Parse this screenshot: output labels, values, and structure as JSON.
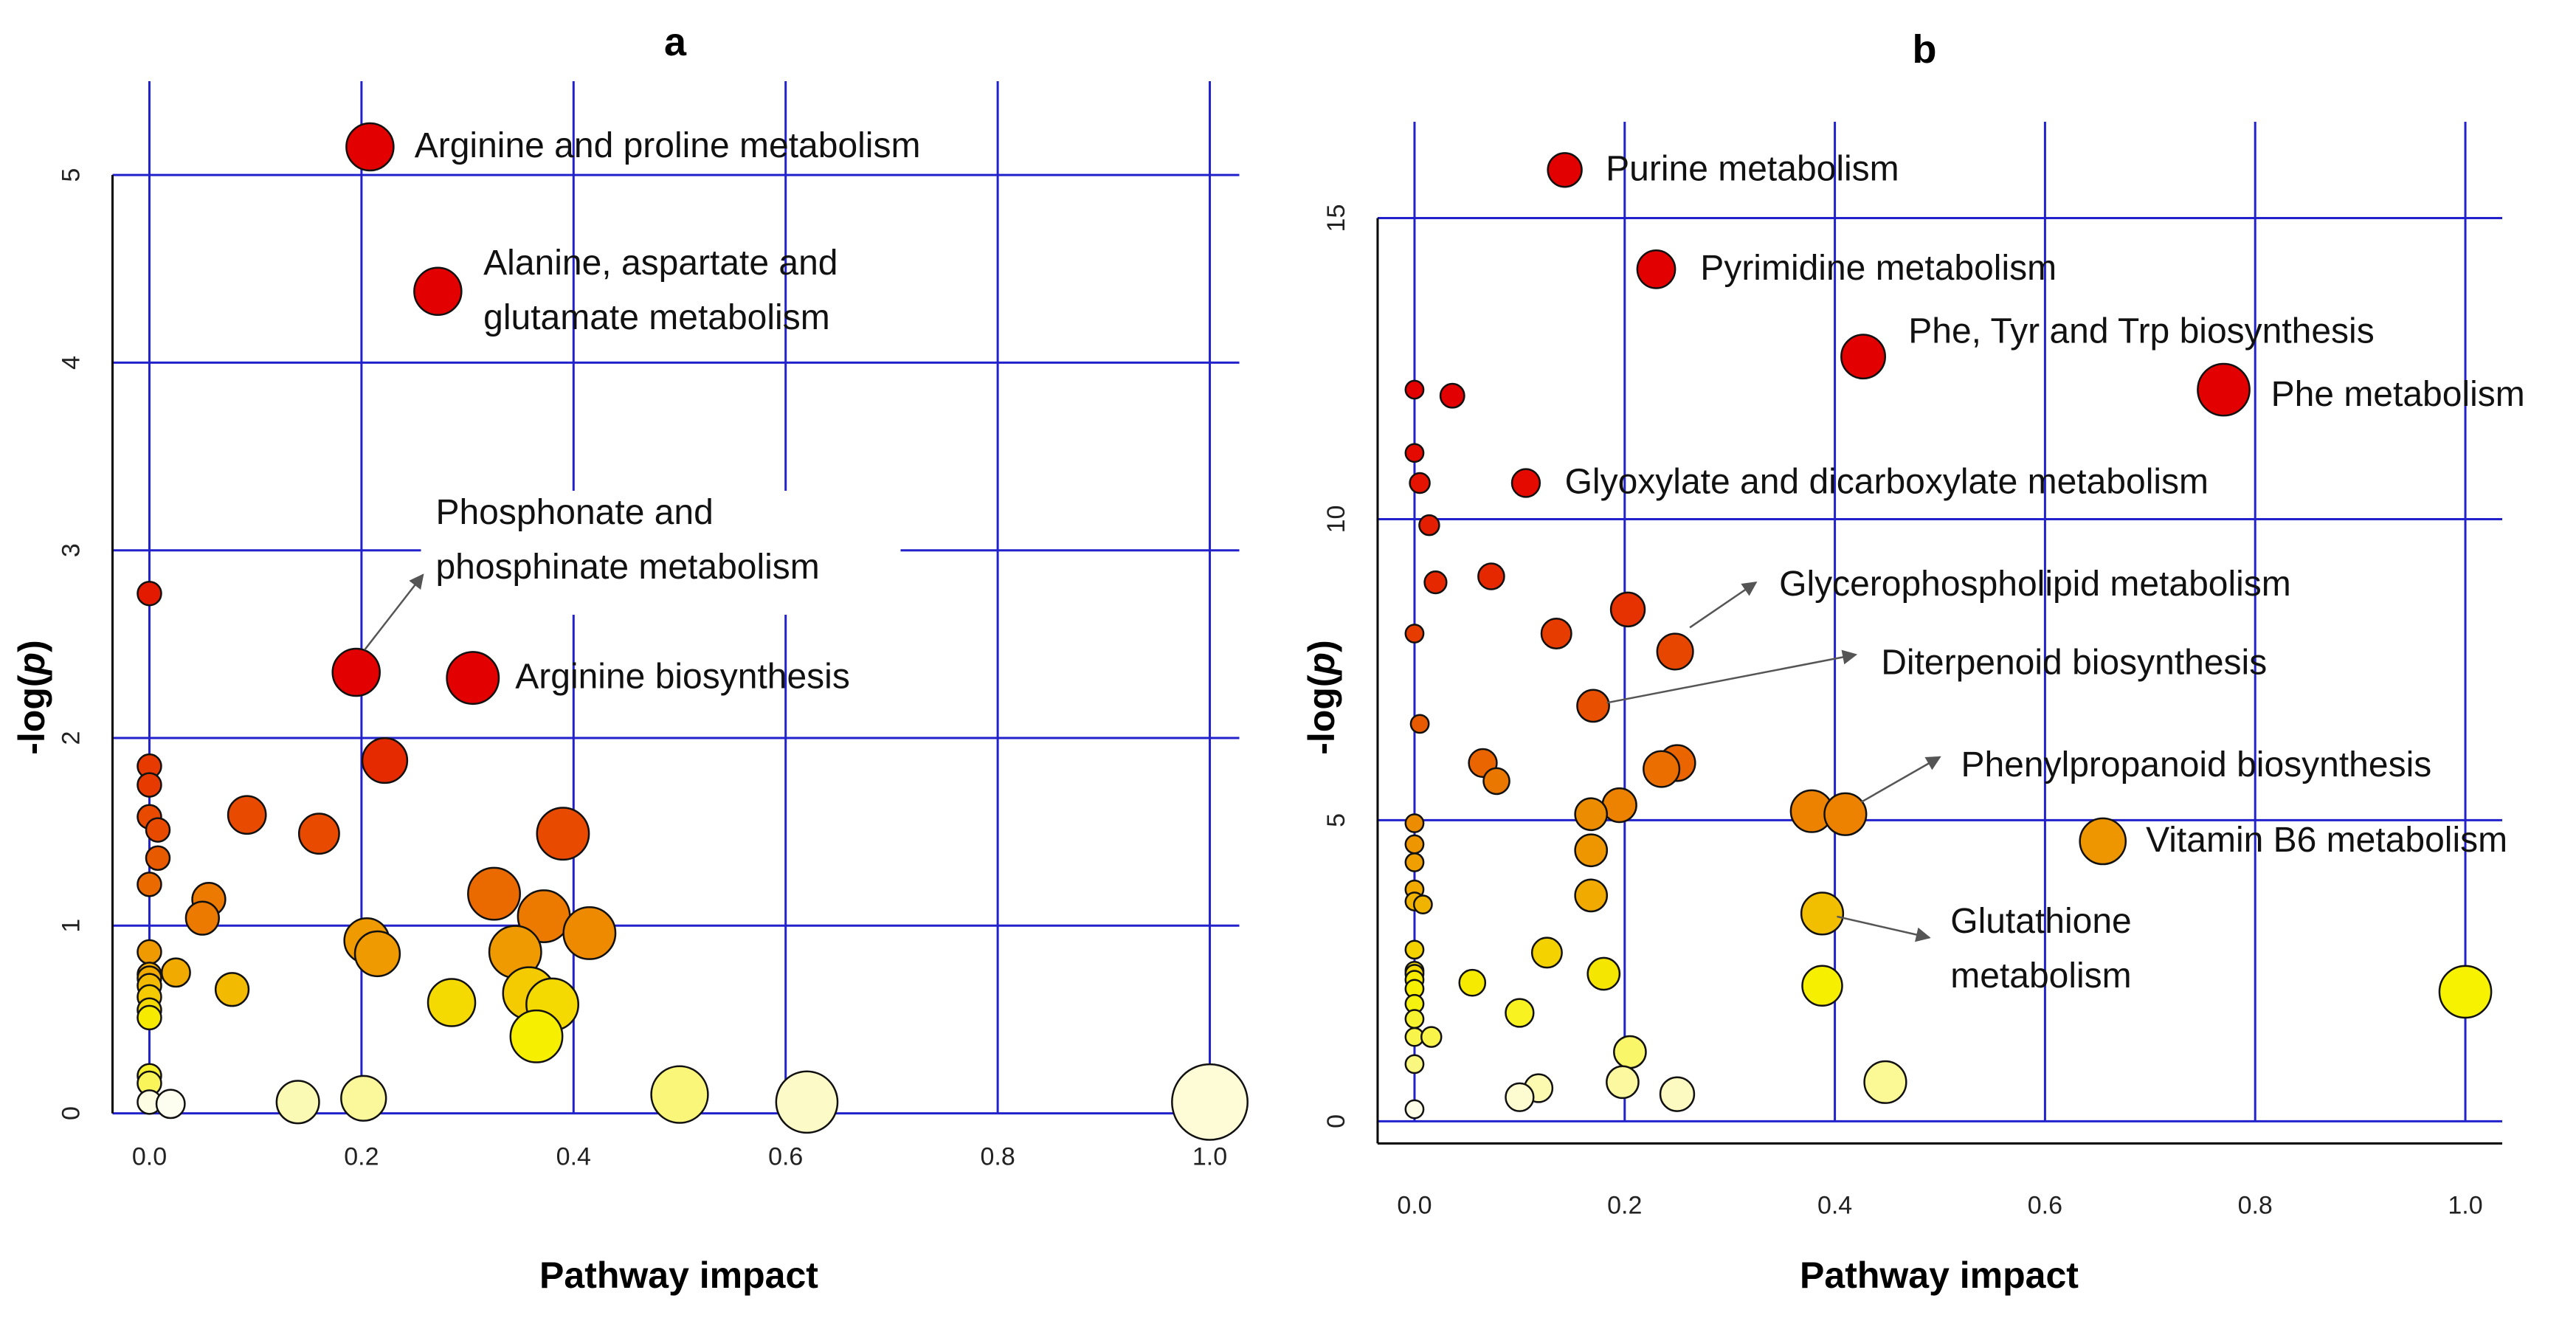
{
  "chart_data": [
    {
      "type": "scatter",
      "panel_label": "a",
      "xlabel": "Pathway impact",
      "ylabel_prefix": "-log(",
      "ylabel_italic": "p",
      "ylabel_suffix": ")",
      "xlim": [
        -0.04,
        1.04
      ],
      "ylim": [
        -0.1,
        5.5
      ],
      "xticks": [
        0.0,
        0.2,
        0.4,
        0.6,
        0.8,
        1.0
      ],
      "xtick_labels": [
        "0.0",
        "0.2",
        "0.4",
        "0.6",
        "0.8",
        "1.0"
      ],
      "yticks": [
        0,
        1,
        2,
        3,
        4,
        5
      ],
      "ytick_labels": [
        "0",
        "1",
        "2",
        "3",
        "4",
        "5"
      ],
      "grid": true,
      "color_scale": "p-value: red (high -log p) to yellow/white (low)",
      "points": [
        {
          "x": 0.208,
          "y": 5.15,
          "size": 1.0,
          "color": "#e30000"
        },
        {
          "x": 0.272,
          "y": 4.38,
          "size": 1.0,
          "color": "#e30000"
        },
        {
          "x": 0.195,
          "y": 2.35,
          "size": 1.0,
          "color": "#e30000"
        },
        {
          "x": 0.305,
          "y": 2.32,
          "size": 1.1,
          "color": "#e30000"
        },
        {
          "x": 0.0,
          "y": 2.77,
          "size": 0.5,
          "color": "#e41a00"
        },
        {
          "x": 0.222,
          "y": 1.88,
          "size": 0.95,
          "color": "#e52a00"
        },
        {
          "x": 0.0,
          "y": 1.85,
          "size": 0.5,
          "color": "#e63a00"
        },
        {
          "x": 0.0,
          "y": 1.75,
          "size": 0.5,
          "color": "#e63a00"
        },
        {
          "x": 0.092,
          "y": 1.59,
          "size": 0.8,
          "color": "#e84a00"
        },
        {
          "x": 0.0,
          "y": 1.58,
          "size": 0.5,
          "color": "#e84a00"
        },
        {
          "x": 0.008,
          "y": 1.51,
          "size": 0.5,
          "color": "#e84a00"
        },
        {
          "x": 0.16,
          "y": 1.49,
          "size": 0.85,
          "color": "#e84a00"
        },
        {
          "x": 0.39,
          "y": 1.49,
          "size": 1.1,
          "color": "#e84a00"
        },
        {
          "x": 0.008,
          "y": 1.36,
          "size": 0.5,
          "color": "#e85a00"
        },
        {
          "x": 0.0,
          "y": 1.22,
          "size": 0.5,
          "color": "#ea6a00"
        },
        {
          "x": 0.325,
          "y": 1.17,
          "size": 1.1,
          "color": "#ea6a00"
        },
        {
          "x": 0.056,
          "y": 1.14,
          "size": 0.7,
          "color": "#ec7a00"
        },
        {
          "x": 0.372,
          "y": 1.05,
          "size": 1.1,
          "color": "#ec7a00"
        },
        {
          "x": 0.05,
          "y": 1.04,
          "size": 0.7,
          "color": "#ec7a00"
        },
        {
          "x": 0.415,
          "y": 0.96,
          "size": 1.1,
          "color": "#ee8a00"
        },
        {
          "x": 0.205,
          "y": 0.92,
          "size": 0.95,
          "color": "#ee9a00"
        },
        {
          "x": 0.0,
          "y": 0.86,
          "size": 0.5,
          "color": "#ee9a00"
        },
        {
          "x": 0.345,
          "y": 0.86,
          "size": 1.1,
          "color": "#ee9a00"
        },
        {
          "x": 0.215,
          "y": 0.85,
          "size": 0.95,
          "color": "#ee9a00"
        },
        {
          "x": 0.025,
          "y": 0.75,
          "size": 0.6,
          "color": "#f0aa00"
        },
        {
          "x": 0.0,
          "y": 0.74,
          "size": 0.5,
          "color": "#f0aa00"
        },
        {
          "x": 0.0,
          "y": 0.72,
          "size": 0.5,
          "color": "#f0aa00"
        },
        {
          "x": 0.0,
          "y": 0.68,
          "size": 0.5,
          "color": "#f2ba00"
        },
        {
          "x": 0.078,
          "y": 0.66,
          "size": 0.7,
          "color": "#f2ba00"
        },
        {
          "x": 0.358,
          "y": 0.64,
          "size": 1.1,
          "color": "#f4ca00"
        },
        {
          "x": 0.0,
          "y": 0.62,
          "size": 0.5,
          "color": "#f4ca00"
        },
        {
          "x": 0.285,
          "y": 0.59,
          "size": 1.0,
          "color": "#f4da00"
        },
        {
          "x": 0.38,
          "y": 0.58,
          "size": 1.1,
          "color": "#f4da00"
        },
        {
          "x": 0.0,
          "y": 0.55,
          "size": 0.5,
          "color": "#f4da00"
        },
        {
          "x": 0.0,
          "y": 0.51,
          "size": 0.5,
          "color": "#f6ea00"
        },
        {
          "x": 0.365,
          "y": 0.41,
          "size": 1.1,
          "color": "#f6f000"
        },
        {
          "x": 0.0,
          "y": 0.2,
          "size": 0.5,
          "color": "#f7f230"
        },
        {
          "x": 0.0,
          "y": 0.16,
          "size": 0.5,
          "color": "#f8f45a"
        },
        {
          "x": 0.5,
          "y": 0.1,
          "size": 1.2,
          "color": "#f9f67a"
        },
        {
          "x": 0.202,
          "y": 0.08,
          "size": 0.95,
          "color": "#faf89a"
        },
        {
          "x": 0.14,
          "y": 0.06,
          "size": 0.9,
          "color": "#fbfab4"
        },
        {
          "x": 0.62,
          "y": 0.06,
          "size": 1.3,
          "color": "#fcfac6"
        },
        {
          "x": 1.0,
          "y": 0.06,
          "size": 1.6,
          "color": "#fdfcd6"
        },
        {
          "x": 0.0,
          "y": 0.06,
          "size": 0.5,
          "color": "#fdfde4"
        },
        {
          "x": 0.02,
          "y": 0.05,
          "size": 0.6,
          "color": "#fefef0"
        }
      ],
      "annotations": [
        {
          "lines": [
            "Arginine and proline metabolism"
          ],
          "x": 0.25,
          "y": 5.15
        },
        {
          "lines": [
            "Alanine, aspartate and",
            "glutamate metabolism"
          ],
          "x": 0.315,
          "y": 4.38
        },
        {
          "lines": [
            "Phosphonate and",
            "phosphinate metabolism"
          ],
          "x": 0.27,
          "y": 3.05,
          "white_box": true,
          "arrow_from": [
            0.203,
            2.47
          ],
          "arrow_to": [
            0.258,
            2.87
          ]
        },
        {
          "lines": [
            "Arginine biosynthesis"
          ],
          "x": 0.345,
          "y": 2.32
        }
      ]
    },
    {
      "type": "scatter",
      "panel_label": "b",
      "xlabel": "Pathway impact",
      "ylabel_prefix": "-log(",
      "ylabel_italic": "p",
      "ylabel_suffix": ")",
      "xlim": [
        -0.04,
        1.04
      ],
      "ylim": [
        -0.4,
        16.6
      ],
      "xticks": [
        0.0,
        0.2,
        0.4,
        0.6,
        0.8,
        1.0
      ],
      "xtick_labels": [
        "0.0",
        "0.2",
        "0.4",
        "0.6",
        "0.8",
        "1.0"
      ],
      "yticks": [
        0,
        5,
        10,
        15
      ],
      "ytick_labels": [
        "0",
        "5",
        "10",
        "15"
      ],
      "grid": true,
      "color_scale": "p-value: red (high -log p) to yellow/white (low)",
      "points": [
        {
          "x": 0.143,
          "y": 15.8,
          "size": 0.85,
          "color": "#e30000"
        },
        {
          "x": 0.23,
          "y": 14.15,
          "size": 0.95,
          "color": "#e30000"
        },
        {
          "x": 0.427,
          "y": 12.7,
          "size": 1.1,
          "color": "#e30000"
        },
        {
          "x": 0.77,
          "y": 12.15,
          "size": 1.3,
          "color": "#e30000"
        },
        {
          "x": 0.0,
          "y": 12.15,
          "size": 0.45,
          "color": "#e30000"
        },
        {
          "x": 0.036,
          "y": 12.05,
          "size": 0.6,
          "color": "#e30000"
        },
        {
          "x": 0.0,
          "y": 11.1,
          "size": 0.45,
          "color": "#e40a00"
        },
        {
          "x": 0.106,
          "y": 10.6,
          "size": 0.7,
          "color": "#e40a00"
        },
        {
          "x": 0.005,
          "y": 10.6,
          "size": 0.5,
          "color": "#e41400"
        },
        {
          "x": 0.014,
          "y": 9.9,
          "size": 0.5,
          "color": "#e41e00"
        },
        {
          "x": 0.073,
          "y": 9.05,
          "size": 0.65,
          "color": "#e52800"
        },
        {
          "x": 0.02,
          "y": 8.95,
          "size": 0.55,
          "color": "#e52800"
        },
        {
          "x": 0.203,
          "y": 8.5,
          "size": 0.85,
          "color": "#e63200"
        },
        {
          "x": 0.135,
          "y": 8.1,
          "size": 0.75,
          "color": "#e63c00"
        },
        {
          "x": 0.0,
          "y": 8.1,
          "size": 0.45,
          "color": "#e63c00"
        },
        {
          "x": 0.248,
          "y": 7.8,
          "size": 0.9,
          "color": "#e64600"
        },
        {
          "x": 0.17,
          "y": 6.9,
          "size": 0.8,
          "color": "#e85000"
        },
        {
          "x": 0.005,
          "y": 6.6,
          "size": 0.45,
          "color": "#e85a00"
        },
        {
          "x": 0.065,
          "y": 5.95,
          "size": 0.7,
          "color": "#ea6400"
        },
        {
          "x": 0.25,
          "y": 5.95,
          "size": 0.9,
          "color": "#ea6400"
        },
        {
          "x": 0.235,
          "y": 5.85,
          "size": 0.9,
          "color": "#ea6e00"
        },
        {
          "x": 0.078,
          "y": 5.65,
          "size": 0.65,
          "color": "#ea7800"
        },
        {
          "x": 0.195,
          "y": 5.25,
          "size": 0.85,
          "color": "#ec8200"
        },
        {
          "x": 0.378,
          "y": 5.15,
          "size": 1.05,
          "color": "#ec8200"
        },
        {
          "x": 0.41,
          "y": 5.1,
          "size": 1.05,
          "color": "#ec8200"
        },
        {
          "x": 0.168,
          "y": 5.1,
          "size": 0.8,
          "color": "#ec8c00"
        },
        {
          "x": 0.0,
          "y": 4.95,
          "size": 0.45,
          "color": "#ec8c00"
        },
        {
          "x": 0.655,
          "y": 4.65,
          "size": 1.15,
          "color": "#ee9600"
        },
        {
          "x": 0.0,
          "y": 4.6,
          "size": 0.45,
          "color": "#ee9600"
        },
        {
          "x": 0.168,
          "y": 4.5,
          "size": 0.8,
          "color": "#ee9600"
        },
        {
          "x": 0.0,
          "y": 4.3,
          "size": 0.45,
          "color": "#efa000"
        },
        {
          "x": 0.0,
          "y": 3.85,
          "size": 0.45,
          "color": "#f0aa00"
        },
        {
          "x": 0.168,
          "y": 3.75,
          "size": 0.8,
          "color": "#f0aa00"
        },
        {
          "x": 0.0,
          "y": 3.65,
          "size": 0.45,
          "color": "#f0b400"
        },
        {
          "x": 0.008,
          "y": 3.6,
          "size": 0.45,
          "color": "#f0b400"
        },
        {
          "x": 0.388,
          "y": 3.45,
          "size": 1.05,
          "color": "#f2be00"
        },
        {
          "x": 0.0,
          "y": 2.85,
          "size": 0.45,
          "color": "#f4d200"
        },
        {
          "x": 0.126,
          "y": 2.8,
          "size": 0.75,
          "color": "#f4d200"
        },
        {
          "x": 0.0,
          "y": 2.5,
          "size": 0.45,
          "color": "#f4dc00"
        },
        {
          "x": 0.0,
          "y": 2.45,
          "size": 0.45,
          "color": "#f4dc00"
        },
        {
          "x": 0.18,
          "y": 2.45,
          "size": 0.8,
          "color": "#f4e600"
        },
        {
          "x": 0.0,
          "y": 2.35,
          "size": 0.45,
          "color": "#f5ea00"
        },
        {
          "x": 0.055,
          "y": 2.3,
          "size": 0.65,
          "color": "#f5ea00"
        },
        {
          "x": 0.388,
          "y": 2.25,
          "size": 1.0,
          "color": "#f6f000"
        },
        {
          "x": 0.0,
          "y": 2.2,
          "size": 0.45,
          "color": "#f6f000"
        },
        {
          "x": 1.0,
          "y": 2.15,
          "size": 1.3,
          "color": "#f6f200"
        },
        {
          "x": 0.0,
          "y": 1.95,
          "size": 0.45,
          "color": "#f6f210"
        },
        {
          "x": 0.1,
          "y": 1.8,
          "size": 0.7,
          "color": "#f7f220"
        },
        {
          "x": 0.0,
          "y": 1.7,
          "size": 0.45,
          "color": "#f7f230"
        },
        {
          "x": 0.0,
          "y": 1.4,
          "size": 0.45,
          "color": "#f8f44a"
        },
        {
          "x": 0.016,
          "y": 1.4,
          "size": 0.5,
          "color": "#f8f44a"
        },
        {
          "x": 0.205,
          "y": 1.15,
          "size": 0.8,
          "color": "#f9f66a"
        },
        {
          "x": 0.0,
          "y": 0.95,
          "size": 0.45,
          "color": "#faf780"
        },
        {
          "x": 0.448,
          "y": 0.65,
          "size": 1.05,
          "color": "#fbf896"
        },
        {
          "x": 0.198,
          "y": 0.65,
          "size": 0.8,
          "color": "#fbf8a0"
        },
        {
          "x": 0.118,
          "y": 0.55,
          "size": 0.7,
          "color": "#fcfab0"
        },
        {
          "x": 0.25,
          "y": 0.45,
          "size": 0.85,
          "color": "#fcfac0"
        },
        {
          "x": 0.1,
          "y": 0.4,
          "size": 0.7,
          "color": "#fdfcd0"
        },
        {
          "x": 0.0,
          "y": 0.2,
          "size": 0.45,
          "color": "#fefee8"
        }
      ],
      "annotations": [
        {
          "lines": [
            "Purine metabolism"
          ],
          "x": 0.182,
          "y": 15.8
        },
        {
          "lines": [
            "Pyrimidine metabolism"
          ],
          "x": 0.272,
          "y": 14.15
        },
        {
          "lines": [
            "Phe, Tyr and Trp biosynthesis"
          ],
          "x": 0.47,
          "y": 13.1
        },
        {
          "lines": [
            "Phe metabolism"
          ],
          "x": 0.815,
          "y": 12.05
        },
        {
          "lines": [
            "Glyoxylate and dicarboxylate metabolism"
          ],
          "x": 0.143,
          "y": 10.6
        },
        {
          "lines": [
            "Glycerophospholipid metabolism"
          ],
          "x": 0.347,
          "y": 8.9,
          "arrow_from": [
            0.262,
            8.2
          ],
          "arrow_to": [
            0.325,
            8.95
          ]
        },
        {
          "lines": [
            "Diterpenoid biosynthesis"
          ],
          "x": 0.444,
          "y": 7.6,
          "arrow_from": [
            0.183,
            6.95
          ],
          "arrow_to": [
            0.42,
            7.75
          ]
        },
        {
          "lines": [
            "Phenylpropanoid biosynthesis"
          ],
          "x": 0.52,
          "y": 5.9,
          "arrow_from": [
            0.425,
            5.3
          ],
          "arrow_to": [
            0.5,
            6.05
          ]
        },
        {
          "lines": [
            "Vitamin B6 metabolism"
          ],
          "x": 0.696,
          "y": 4.65
        },
        {
          "lines": [
            "Glutathione",
            "metabolism"
          ],
          "x": 0.51,
          "y": 2.85,
          "arrow_from": [
            0.402,
            3.4
          ],
          "arrow_to": [
            0.49,
            3.05
          ]
        }
      ]
    }
  ]
}
